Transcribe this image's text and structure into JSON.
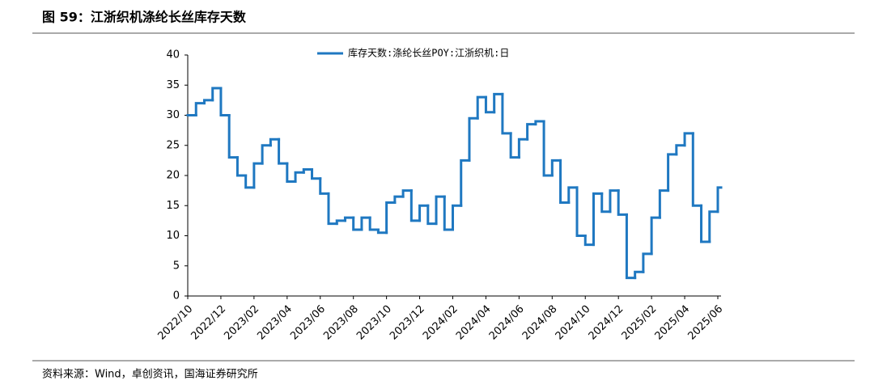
{
  "chart_data": {
    "type": "line",
    "drawstyle": "steps-post",
    "title": "图 59：江浙织机涤纶长丝库存天数",
    "source": "资料来源：Wind，卓创资讯，国海证券研究所",
    "categories": [
      "2022/10",
      null,
      null,
      null,
      "2022/12",
      null,
      null,
      null,
      "2023/02",
      null,
      null,
      null,
      "2023/04",
      null,
      null,
      null,
      "2023/06",
      null,
      null,
      null,
      "2023/08",
      null,
      null,
      null,
      "2023/10",
      null,
      null,
      null,
      "2023/12",
      null,
      null,
      null,
      "2024/02",
      null,
      null,
      null,
      "2024/04",
      null,
      null,
      null,
      "2024/06",
      null,
      null,
      null,
      "2024/08",
      null,
      null,
      null,
      "2024/10",
      null,
      null,
      null,
      "2024/12",
      null,
      null,
      null,
      "2025/02",
      null,
      null,
      null,
      "2025/04",
      null,
      null,
      null,
      "2025/06"
    ],
    "series": [
      {
        "name": "库存天数:涤纶长丝POY:江浙织机:日",
        "color": "#1f78c1",
        "values": [
          30,
          32,
          32.5,
          34.5,
          30,
          23,
          20,
          18,
          22,
          25,
          26,
          22,
          19,
          20.5,
          21,
          19.5,
          17,
          12,
          12.5,
          13,
          11,
          13,
          11,
          10.5,
          15.5,
          16.5,
          17.5,
          12.5,
          15,
          12,
          16.5,
          11,
          15,
          22.5,
          29.5,
          33,
          30.5,
          33.5,
          27,
          23,
          26,
          28.5,
          29,
          20,
          22.5,
          15.5,
          18,
          10,
          8.5,
          17,
          14,
          17.5,
          13.5,
          3,
          4,
          7,
          13,
          17.5,
          23.5,
          25,
          27,
          15,
          9,
          14,
          18
        ]
      }
    ],
    "ylim": [
      0,
      40
    ],
    "yticks": [
      0,
      5,
      10,
      15,
      20,
      25,
      30,
      35,
      40
    ],
    "grid": false,
    "legend": "top"
  }
}
